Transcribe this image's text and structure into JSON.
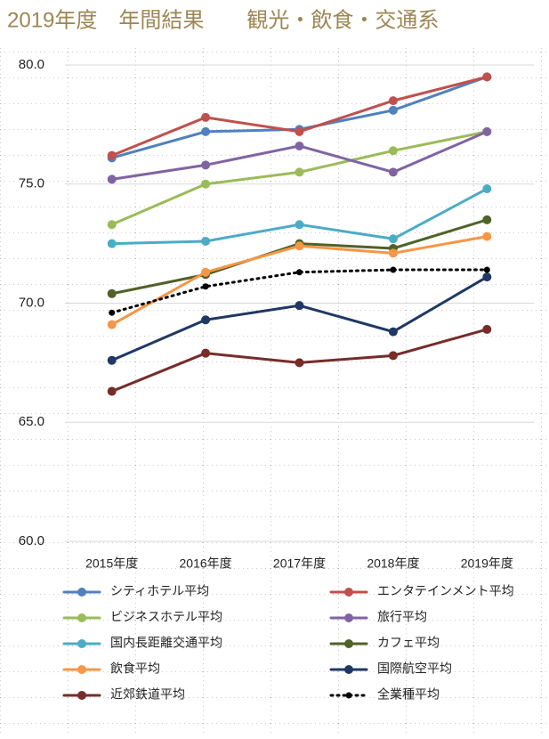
{
  "chart_data": {
    "type": "line",
    "title": "2019年度　年間結果　　観光・飲食・交通系",
    "categories": [
      "2015年度",
      "2016年度",
      "2017年度",
      "2018年度",
      "2019年度"
    ],
    "ylim": [
      60,
      80
    ],
    "yticks": [
      {
        "value": 60,
        "label": "60.0"
      },
      {
        "value": 65,
        "label": "65.0"
      },
      {
        "value": 70,
        "label": "70.0"
      },
      {
        "value": 75,
        "label": "75.0"
      },
      {
        "value": 80,
        "label": "80.0"
      }
    ],
    "grid": true,
    "series": [
      {
        "name": "シティホテル平均",
        "color": "#4f81bd",
        "values": [
          76.1,
          77.2,
          77.3,
          78.1,
          79.5
        ]
      },
      {
        "name": "エンタテインメント平均",
        "color": "#c0504d",
        "values": [
          76.2,
          77.8,
          77.2,
          78.5,
          79.5
        ]
      },
      {
        "name": "ビジネスホテル平均",
        "color": "#9bbb59",
        "values": [
          73.3,
          75.0,
          75.5,
          76.4,
          77.2
        ]
      },
      {
        "name": "旅行平均",
        "color": "#8064a2",
        "values": [
          75.2,
          75.8,
          76.6,
          75.5,
          77.2
        ]
      },
      {
        "name": "国内長距離交通平均",
        "color": "#4bacc6",
        "values": [
          72.5,
          72.6,
          73.3,
          72.7,
          74.8
        ]
      },
      {
        "name": "カフェ平均",
        "color": "#4f6228",
        "values": [
          70.4,
          71.2,
          72.5,
          72.3,
          73.5
        ]
      },
      {
        "name": "飲食平均",
        "color": "#f79646",
        "values": [
          69.1,
          71.3,
          72.4,
          72.1,
          72.8
        ]
      },
      {
        "name": "国際航空平均",
        "color": "#1f3864",
        "values": [
          67.6,
          69.3,
          69.9,
          68.8,
          71.1
        ]
      },
      {
        "name": "近郊鉄道平均",
        "color": "#772c2a",
        "values": [
          66.3,
          67.9,
          67.5,
          67.8,
          68.9
        ]
      },
      {
        "name": "全業種平均",
        "color": "#000000",
        "line_style": "dotted",
        "values": [
          69.6,
          70.7,
          71.3,
          71.4,
          71.4
        ]
      }
    ]
  }
}
